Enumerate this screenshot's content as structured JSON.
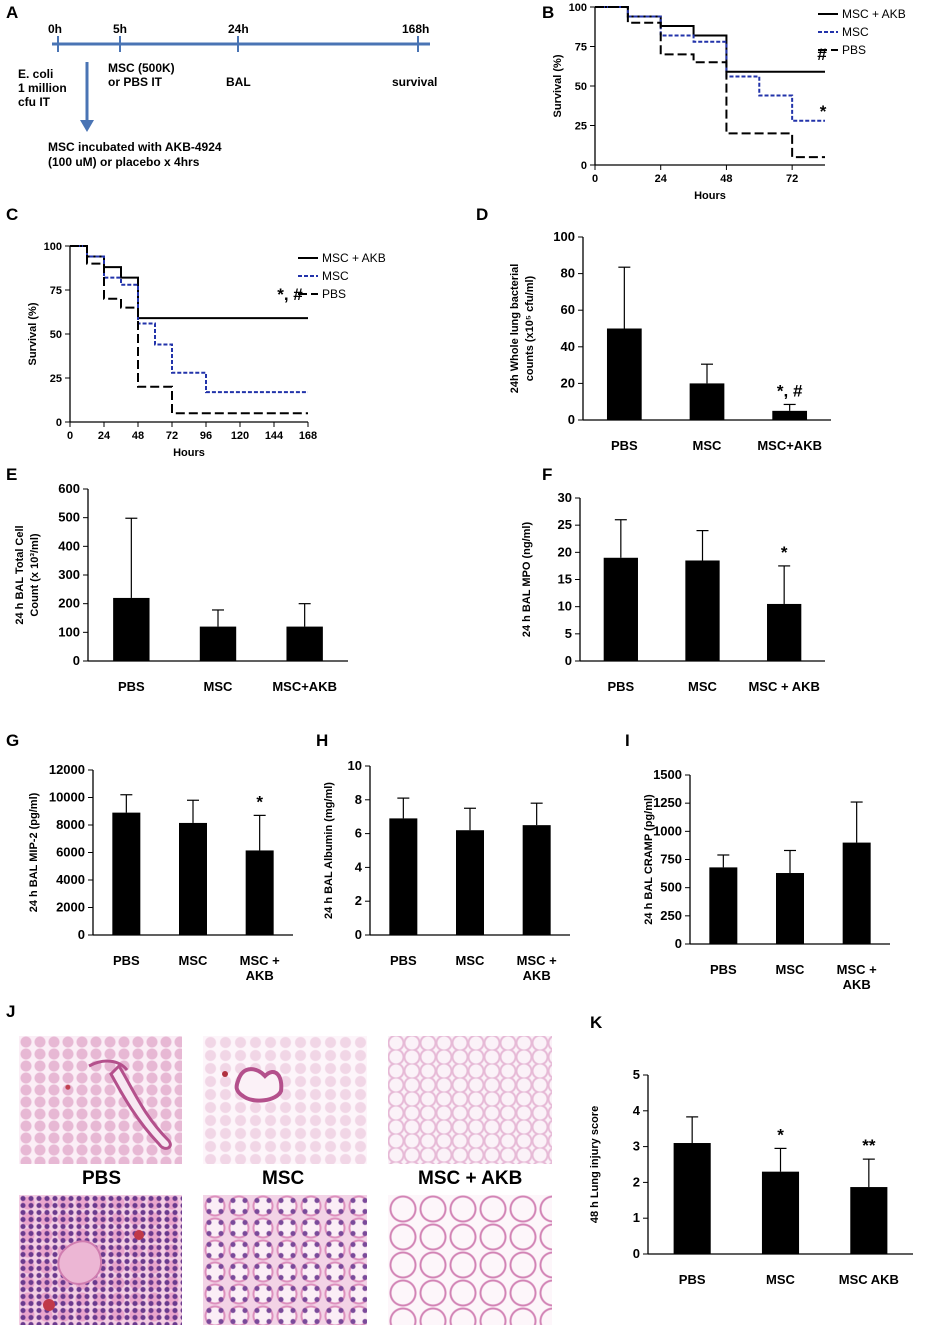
{
  "panel_labels": {
    "A": "A",
    "B": "B",
    "C": "C",
    "D": "D",
    "E": "E",
    "F": "F",
    "G": "G",
    "H": "H",
    "I": "I",
    "J": "J",
    "K": "K"
  },
  "timeline": {
    "times": [
      "0h",
      "5h",
      "24h",
      "168h"
    ],
    "below": [
      "E. coli",
      "1 million",
      "cfu IT",
      "MSC (500K)",
      "or PBS IT",
      "BAL",
      "survival"
    ],
    "note_lines": [
      "MSC incubated with AKB-4924",
      "(100 uM) or placebo x 4hrs"
    ]
  },
  "colors": {
    "bar": "#000000",
    "msc_line": "#2233aa",
    "line": "#000000",
    "timeline": "#4a74b4"
  },
  "histology_labels": [
    "PBS",
    "MSC",
    "MSC + AKB"
  ],
  "chart_data": [
    {
      "id": "B",
      "type": "line",
      "xlabel": "Hours",
      "ylabel": "Survival (%)",
      "xlim": [
        0,
        84
      ],
      "ylim": [
        0,
        100
      ],
      "xticks": [
        "0",
        "24",
        "48",
        "72"
      ],
      "yticks": [
        "0",
        "25",
        "50",
        "75",
        "100"
      ],
      "legend": [
        "MSC + AKB",
        "MSC",
        "PBS"
      ],
      "legend_position": "top-right",
      "series": [
        {
          "name": "MSC + AKB",
          "style": "solid",
          "x": [
            0,
            12,
            12,
            24,
            24,
            36,
            36,
            48,
            48,
            84
          ],
          "y": [
            100,
            100,
            94,
            94,
            88,
            88,
            82,
            82,
            59,
            59
          ]
        },
        {
          "name": "MSC",
          "style": "dotted",
          "x": [
            0,
            12,
            12,
            24,
            24,
            36,
            36,
            48,
            48,
            60,
            60,
            72,
            72,
            84
          ],
          "y": [
            100,
            100,
            94,
            94,
            82,
            82,
            78,
            78,
            56,
            56,
            44,
            44,
            28,
            28
          ]
        },
        {
          "name": "PBS",
          "style": "dashed",
          "x": [
            0,
            12,
            12,
            24,
            24,
            36,
            36,
            48,
            48,
            72,
            72,
            84
          ],
          "y": [
            100,
            100,
            90,
            90,
            70,
            70,
            65,
            65,
            20,
            20,
            5,
            5
          ]
        }
      ],
      "annotations": [
        "#",
        "*"
      ]
    },
    {
      "id": "C",
      "type": "line",
      "xlabel": "Hours",
      "ylabel": "Survival (%)",
      "xlim": [
        0,
        168
      ],
      "ylim": [
        0,
        100
      ],
      "xticks": [
        "0",
        "24",
        "48",
        "72",
        "96",
        "120",
        "144",
        "168"
      ],
      "yticks": [
        "0",
        "25",
        "50",
        "75",
        "100"
      ],
      "legend": [
        "MSC + AKB",
        "MSC",
        "PBS"
      ],
      "legend_position": "top-right",
      "series": [
        {
          "name": "MSC + AKB",
          "style": "solid",
          "x": [
            0,
            12,
            12,
            24,
            24,
            36,
            36,
            48,
            48,
            168
          ],
          "y": [
            100,
            100,
            94,
            94,
            88,
            88,
            82,
            82,
            59,
            59
          ]
        },
        {
          "name": "MSC",
          "style": "dotted",
          "x": [
            0,
            12,
            12,
            24,
            24,
            36,
            36,
            48,
            48,
            60,
            60,
            72,
            72,
            96,
            96,
            168
          ],
          "y": [
            100,
            100,
            94,
            94,
            82,
            82,
            78,
            78,
            56,
            56,
            44,
            44,
            28,
            28,
            17,
            17
          ]
        },
        {
          "name": "PBS",
          "style": "dashed",
          "x": [
            0,
            12,
            12,
            24,
            24,
            36,
            36,
            48,
            48,
            72,
            72,
            168
          ],
          "y": [
            100,
            100,
            90,
            90,
            70,
            70,
            65,
            65,
            20,
            20,
            5,
            5
          ]
        }
      ],
      "annotations": [
        "*, #"
      ]
    },
    {
      "id": "D",
      "type": "bar",
      "categories": [
        "PBS",
        "MSC",
        "MSC+AKB"
      ],
      "values": [
        50,
        20,
        5
      ],
      "errors": [
        33.5,
        10.5,
        3.5
      ],
      "ylabel_lines": [
        "24h Whole lung bacterial",
        "counts (x10⁵ cfu/ml)"
      ],
      "ylim": [
        0,
        100
      ],
      "yticks": [
        "0",
        "20",
        "40",
        "60",
        "80",
        "100"
      ],
      "sig": [
        "",
        "",
        "*, #"
      ]
    },
    {
      "id": "E",
      "type": "bar",
      "categories": [
        "PBS",
        "MSC",
        "MSC+AKB"
      ],
      "values": [
        220,
        120,
        120
      ],
      "errors": [
        278,
        58,
        80
      ],
      "ylabel_lines": [
        "24 h BAL Total Cell",
        "Count (x 10³/ml)"
      ],
      "ylim": [
        0,
        600
      ],
      "yticks": [
        "0",
        "100",
        "200",
        "300",
        "400",
        "500",
        "600"
      ],
      "sig": [
        "",
        "",
        ""
      ]
    },
    {
      "id": "F",
      "type": "bar",
      "categories": [
        "PBS",
        "MSC",
        "MSC + AKB"
      ],
      "values": [
        19,
        18.5,
        10.5
      ],
      "errors": [
        7,
        5.5,
        7
      ],
      "ylabel_lines": [
        "24 h BAL MPO (ng/ml)"
      ],
      "ylim": [
        0,
        30
      ],
      "yticks": [
        "0",
        "5",
        "10",
        "15",
        "20",
        "25",
        "30"
      ],
      "sig": [
        "",
        "",
        "*"
      ]
    },
    {
      "id": "G",
      "type": "bar",
      "categories": [
        [
          "PBS"
        ],
        [
          "MSC"
        ],
        [
          "MSC +",
          "AKB"
        ]
      ],
      "values": [
        8900,
        8150,
        6150
      ],
      "errors": [
        1300,
        1650,
        2550
      ],
      "ylabel_lines": [
        "24 h BAL MIP-2 (pg/ml)"
      ],
      "ylim": [
        0,
        12000
      ],
      "yticks": [
        "0",
        "2000",
        "4000",
        "6000",
        "8000",
        "10000",
        "12000"
      ],
      "sig": [
        "",
        "",
        "*"
      ]
    },
    {
      "id": "H",
      "type": "bar",
      "categories": [
        [
          "PBS"
        ],
        [
          "MSC"
        ],
        [
          "MSC +",
          "AKB"
        ]
      ],
      "values": [
        6.9,
        6.2,
        6.5
      ],
      "errors": [
        1.2,
        1.3,
        1.3
      ],
      "ylabel_lines": [
        "24 h BAL Albumin (mg/ml)"
      ],
      "ylim": [
        0,
        10
      ],
      "yticks": [
        "0",
        "2",
        "4",
        "6",
        "8",
        "10"
      ],
      "sig": [
        "",
        "",
        ""
      ]
    },
    {
      "id": "I",
      "type": "bar",
      "categories": [
        [
          "PBS"
        ],
        [
          "MSC"
        ],
        [
          "MSC +",
          "AKB"
        ]
      ],
      "values": [
        680,
        630,
        900
      ],
      "errors": [
        110,
        200,
        360
      ],
      "ylabel_lines": [
        "24 h BAL CRAMP (pg/ml)"
      ],
      "ylim": [
        0,
        1500
      ],
      "yticks": [
        "0",
        "250",
        "500",
        "750",
        "1000",
        "1250",
        "1500"
      ],
      "sig": [
        "",
        "",
        ""
      ]
    },
    {
      "id": "K",
      "type": "bar",
      "categories": [
        "PBS",
        "MSC",
        "MSC AKB"
      ],
      "values": [
        3.1,
        2.3,
        1.87
      ],
      "errors": [
        0.73,
        0.65,
        0.78
      ],
      "ylabel_lines": [
        "48 h Lung injury score"
      ],
      "ylim": [
        0,
        5
      ],
      "yticks": [
        "0",
        "1",
        "2",
        "3",
        "4",
        "5"
      ],
      "sig": [
        "",
        "*",
        "**"
      ]
    }
  ]
}
